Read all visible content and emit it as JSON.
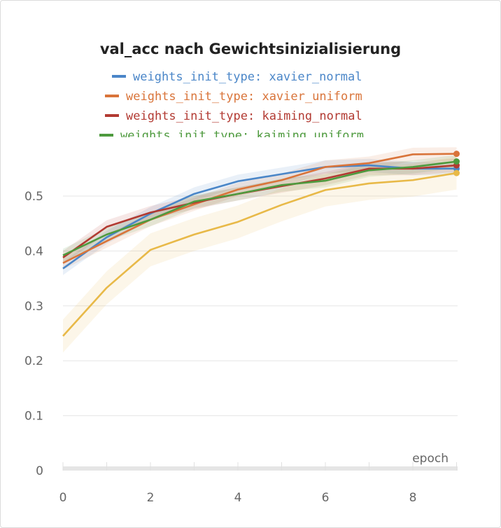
{
  "chart_data": {
    "type": "line",
    "title": "val_acc nach Gewichtsinizialisierung",
    "xlabel": "epoch",
    "ylabel": "",
    "xlim": [
      0,
      9
    ],
    "ylim": [
      0,
      0.6
    ],
    "x_ticks": [
      "0",
      "2",
      "4",
      "6",
      "8"
    ],
    "y_ticks": [
      "0",
      "0.1",
      "0.2",
      "0.3",
      "0.4",
      "0.5"
    ],
    "grid": true,
    "legend_position": "top",
    "x": [
      0,
      1,
      2,
      3,
      4,
      5,
      6,
      7,
      8,
      9
    ],
    "series": [
      {
        "name": "weights_init_type: xavier_normal",
        "color": "#4a86c8",
        "values": [
          0.368,
          0.425,
          0.468,
          0.504,
          0.527,
          0.54,
          0.553,
          0.556,
          0.55,
          0.55
        ]
      },
      {
        "name": "weights_init_type: xavier_uniform",
        "color": "#d9743a",
        "values": [
          0.378,
          0.418,
          0.457,
          0.485,
          0.512,
          0.529,
          0.553,
          0.56,
          0.576,
          0.577
        ]
      },
      {
        "name": "weights_init_type: kaiming_normal",
        "color": "#b23a32",
        "values": [
          0.388,
          0.444,
          0.47,
          0.488,
          0.504,
          0.518,
          0.532,
          0.55,
          0.55,
          0.556
        ]
      },
      {
        "name": "weights_init_type: kaiming_uniform",
        "color": "#4e9a3e",
        "values": [
          0.392,
          0.43,
          0.457,
          0.49,
          0.504,
          0.52,
          0.528,
          0.547,
          0.553,
          0.563
        ]
      },
      {
        "name": "",
        "color": "#e8b948",
        "values": [
          0.245,
          0.333,
          0.402,
          0.43,
          0.453,
          0.484,
          0.511,
          0.523,
          0.529,
          0.542
        ]
      }
    ]
  }
}
